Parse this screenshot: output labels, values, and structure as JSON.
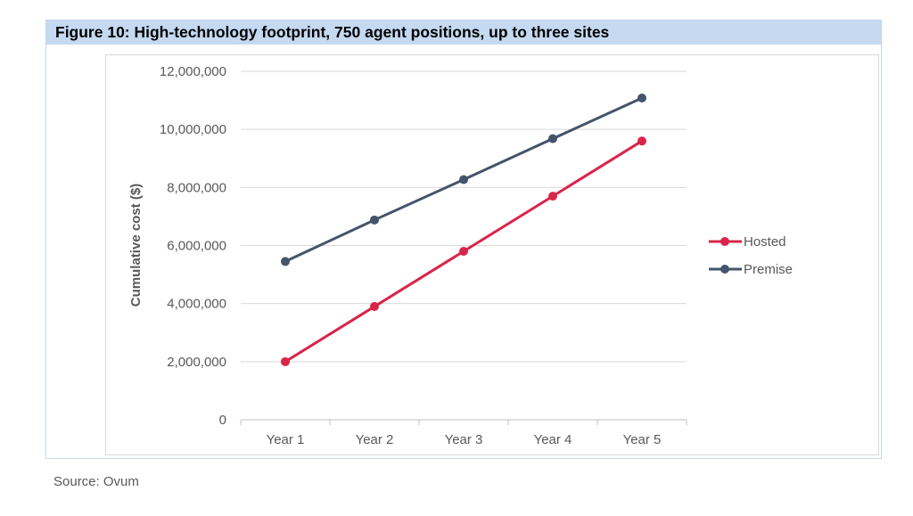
{
  "title": "Figure 10: High-technology footprint, 750 agent positions, up to three sites",
  "source": "Source: Ovum",
  "chart_data": {
    "type": "line",
    "title": "",
    "xlabel": "",
    "ylabel": "Cumulative cost ($)",
    "categories": [
      "Year 1",
      "Year 2",
      "Year 3",
      "Year 4",
      "Year 5"
    ],
    "ylim": [
      0,
      12000000
    ],
    "yticks": [
      0,
      2000000,
      4000000,
      6000000,
      8000000,
      10000000,
      12000000
    ],
    "ytick_labels": [
      "0",
      "2,000,000",
      "4,000,000",
      "6,000,000",
      "8,000,000",
      "10,000,000",
      "12,000,000"
    ],
    "grid": true,
    "legend_position": "right",
    "series": [
      {
        "name": "Hosted",
        "color": "#d9254a",
        "values": [
          2000000,
          3900000,
          5800000,
          7700000,
          9600000
        ]
      },
      {
        "name": "Premise",
        "color": "#44546a",
        "values": [
          5450000,
          6880000,
          8270000,
          9680000,
          11080000
        ]
      }
    ]
  }
}
